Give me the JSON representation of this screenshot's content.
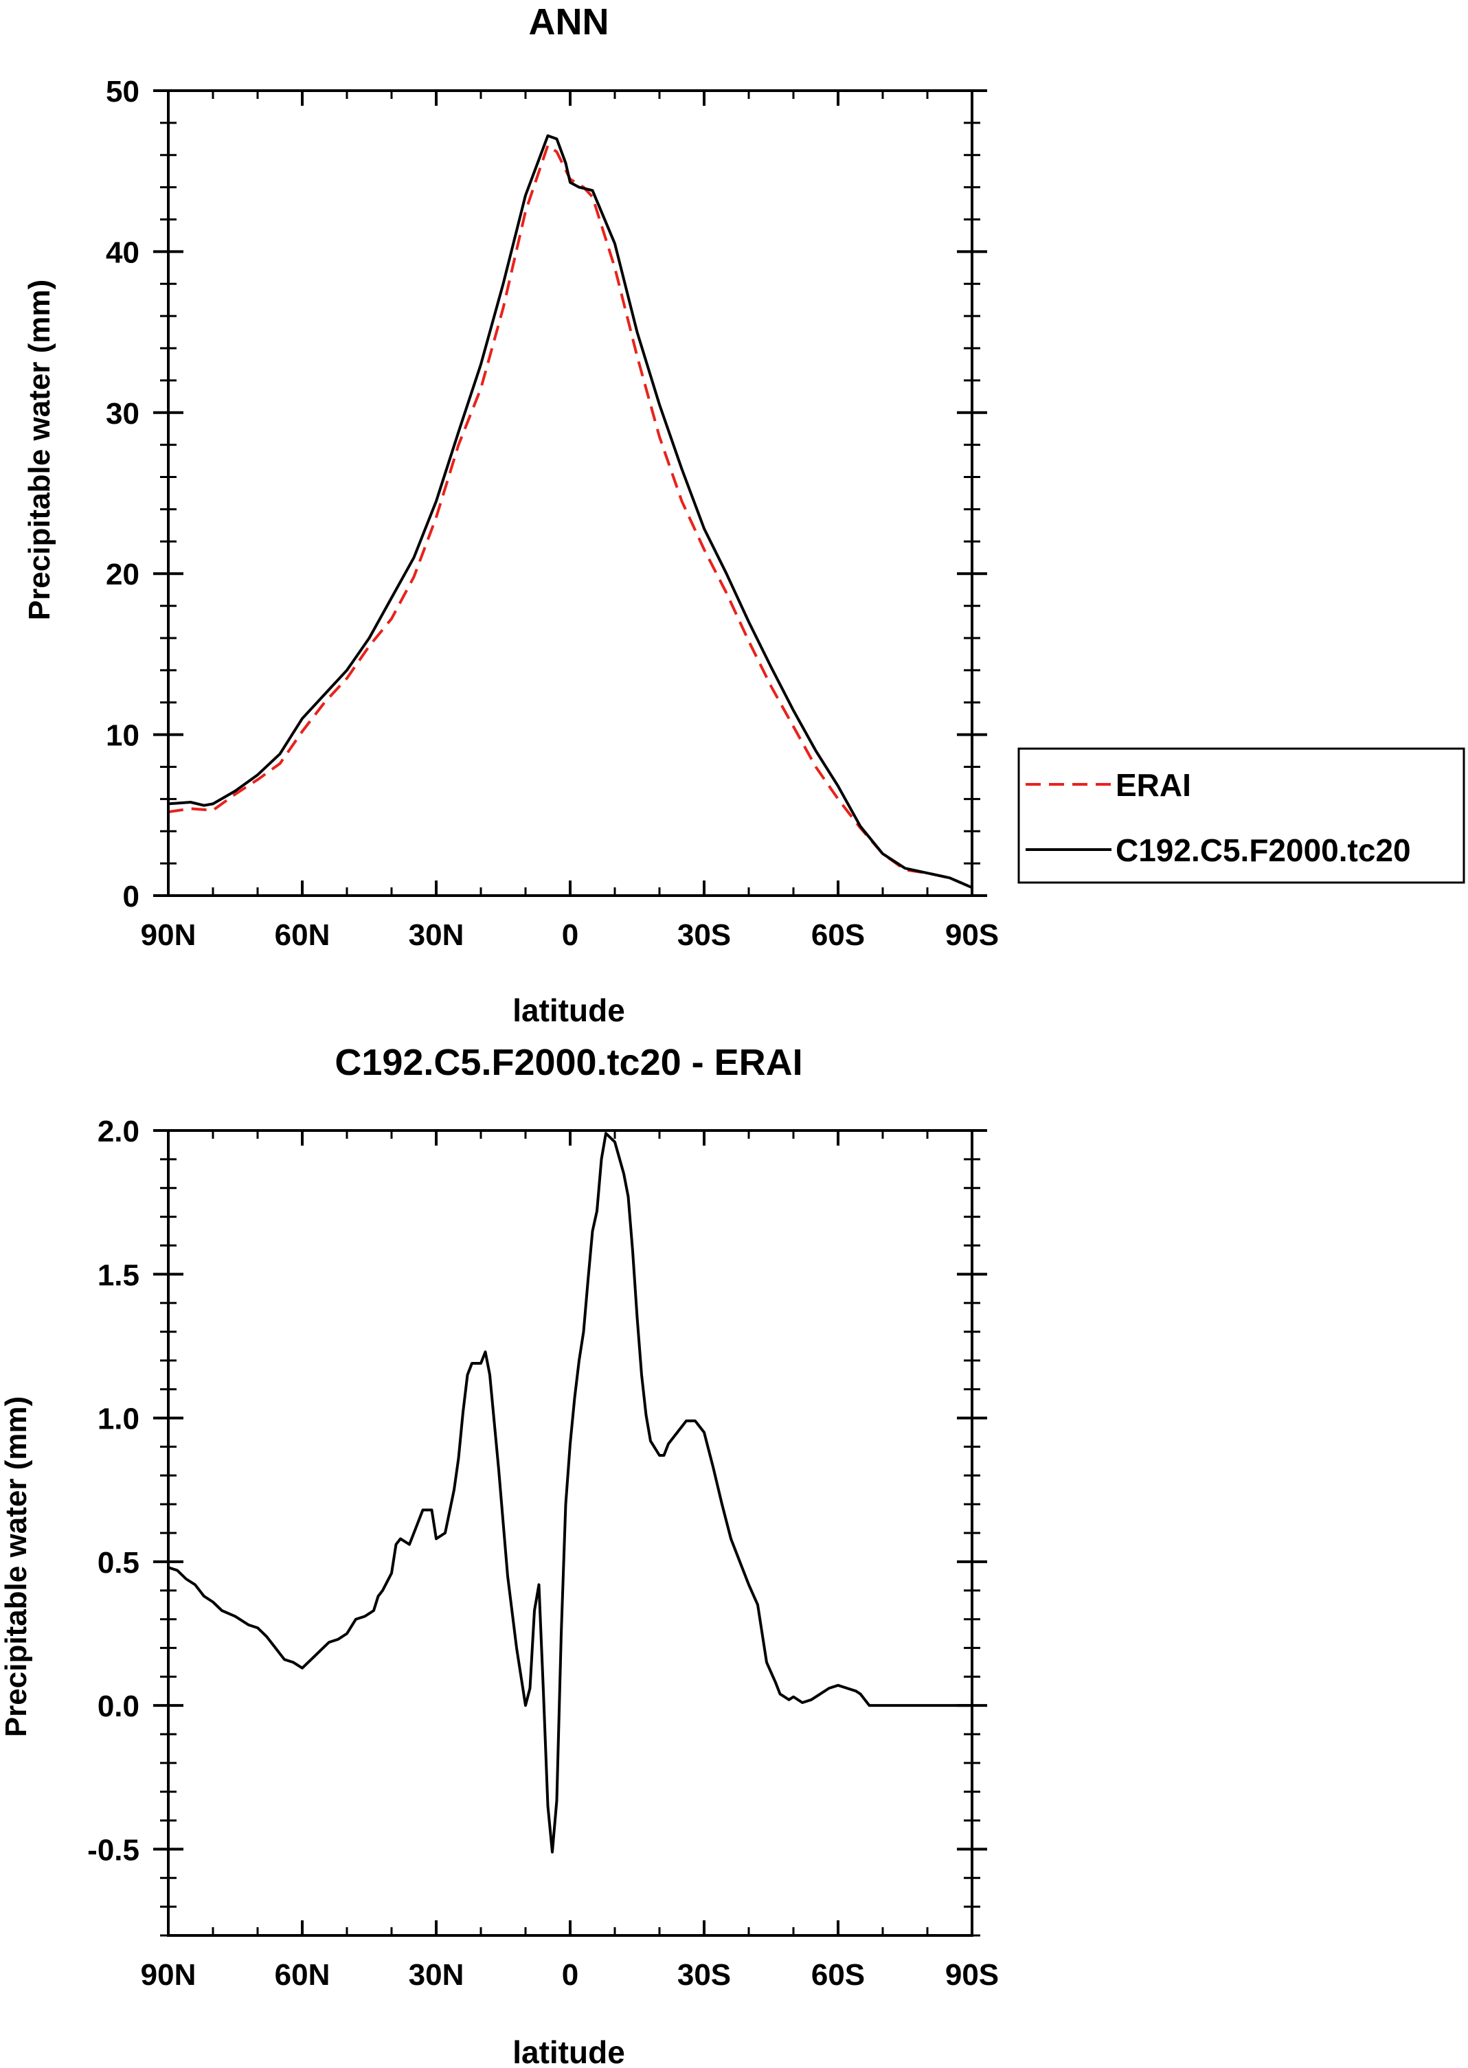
{
  "chart_data": [
    {
      "type": "line",
      "title": "ANN",
      "xlabel": "latitude",
      "ylabel": "Precipitable water (mm)",
      "xlim": [
        90,
        -90
      ],
      "ylim": [
        0,
        50
      ],
      "x_ticks": [
        90,
        60,
        30,
        0,
        -30,
        -60,
        -90
      ],
      "x_tick_labels": [
        "90N",
        "60N",
        "30N",
        "0",
        "30S",
        "60S",
        "90S"
      ],
      "y_ticks": [
        0,
        10,
        20,
        30,
        40,
        50
      ],
      "y_tick_labels": [
        "0",
        "10",
        "20",
        "30",
        "40",
        "50"
      ],
      "legend": {
        "position": "right",
        "entries": [
          "ERAI",
          "C192.C5.F2000.tc20"
        ]
      },
      "series": [
        {
          "name": "ERAI",
          "color": "#e8231c",
          "style": "dashed",
          "x": [
            90,
            85,
            80,
            75,
            70,
            65,
            60,
            55,
            50,
            45,
            40,
            35,
            30,
            25,
            20,
            15,
            10,
            5,
            3,
            0,
            -3,
            -5,
            -10,
            -15,
            -20,
            -25,
            -30,
            -35,
            -40,
            -45,
            -50,
            -55,
            -60,
            -65,
            -70,
            -75,
            -80,
            -85,
            -90
          ],
          "y": [
            5.2,
            5.4,
            5.3,
            6.3,
            7.2,
            8.2,
            10.2,
            12.0,
            13.5,
            15.5,
            17.2,
            19.8,
            23.5,
            28.0,
            31.5,
            36.5,
            42.5,
            46.6,
            46.2,
            44.5,
            44.0,
            43.4,
            39.0,
            33.5,
            28.5,
            24.5,
            21.5,
            18.8,
            15.8,
            13.0,
            10.5,
            8.0,
            6.0,
            4.2,
            2.6,
            1.6,
            1.4,
            1.1,
            0.5
          ]
        },
        {
          "name": "C192.C5.F2000.tc20",
          "color": "#000000",
          "style": "solid",
          "x": [
            90,
            85,
            82,
            80,
            75,
            70,
            65,
            60,
            55,
            50,
            45,
            40,
            35,
            30,
            25,
            20,
            15,
            10,
            5,
            3,
            1,
            0,
            -2,
            -5,
            -10,
            -15,
            -20,
            -25,
            -30,
            -35,
            -40,
            -45,
            -50,
            -55,
            -60,
            -65,
            -70,
            -75,
            -80,
            -85,
            -90
          ],
          "y": [
            5.7,
            5.8,
            5.6,
            5.7,
            6.5,
            7.5,
            8.8,
            11.0,
            12.5,
            14.0,
            16.0,
            18.5,
            21.0,
            24.5,
            28.8,
            33.0,
            38.0,
            43.5,
            47.2,
            47.0,
            45.5,
            44.3,
            44.0,
            43.8,
            40.5,
            35.0,
            30.5,
            26.5,
            22.8,
            20.0,
            17.0,
            14.2,
            11.5,
            9.0,
            6.8,
            4.3,
            2.6,
            1.7,
            1.4,
            1.1,
            0.5
          ]
        }
      ]
    },
    {
      "type": "line",
      "title": "C192.C5.F2000.tc20 - ERAI",
      "xlabel": "latitude",
      "ylabel": "Precipitable water (mm)",
      "xlim": [
        90,
        -90
      ],
      "ylim": [
        -0.8,
        2.0
      ],
      "x_ticks": [
        90,
        60,
        30,
        0,
        -30,
        -60,
        -90
      ],
      "x_tick_labels": [
        "90N",
        "60N",
        "30N",
        "0",
        "30S",
        "60S",
        "90S"
      ],
      "y_ticks": [
        -0.5,
        0.0,
        0.5,
        1.0,
        1.5,
        2.0
      ],
      "y_tick_labels": [
        "-0.5",
        "0.0",
        "0.5",
        "1.0",
        "1.5",
        "2.0"
      ],
      "series": [
        {
          "name": "C192.C5.F2000.tc20 - ERAI",
          "color": "#000000",
          "style": "solid",
          "x": [
            90,
            88,
            86,
            84,
            82,
            80,
            78,
            75,
            72,
            70,
            68,
            66,
            65,
            64,
            62,
            60,
            58,
            56,
            54,
            52,
            50,
            48,
            46,
            44,
            43,
            42,
            40,
            39,
            38,
            36,
            34,
            33,
            32,
            31,
            30,
            28,
            26,
            25,
            24,
            23,
            22,
            20,
            19,
            18,
            16,
            14,
            12,
            10,
            9,
            8,
            7,
            6,
            5,
            4,
            3,
            2,
            1,
            0,
            -1,
            -2,
            -3,
            -4,
            -5,
            -6,
            -7,
            -8,
            -10,
            -12,
            -13,
            -14,
            -15,
            -16,
            -17,
            -18,
            -20,
            -21,
            -22,
            -24,
            -26,
            -28,
            -30,
            -32,
            -34,
            -36,
            -38,
            -40,
            -42,
            -43,
            -44,
            -46,
            -47,
            -48,
            -49,
            -50,
            -52,
            -54,
            -56,
            -58,
            -60,
            -62,
            -64,
            -65,
            -66,
            -67,
            -68,
            -70,
            -72,
            -73,
            -74,
            -75,
            -76,
            -78,
            -80,
            -82,
            -83,
            -84,
            -86,
            -88,
            -90
          ],
          "y": [
            0.48,
            0.47,
            0.44,
            0.42,
            0.38,
            0.36,
            0.33,
            0.31,
            0.28,
            0.27,
            0.24,
            0.2,
            0.18,
            0.16,
            0.15,
            0.13,
            0.16,
            0.19,
            0.22,
            0.23,
            0.25,
            0.3,
            0.31,
            0.33,
            0.38,
            0.4,
            0.46,
            0.56,
            0.58,
            0.56,
            0.64,
            0.68,
            0.68,
            0.68,
            0.58,
            0.6,
            0.75,
            0.86,
            1.02,
            1.15,
            1.19,
            1.19,
            1.23,
            1.15,
            0.82,
            0.45,
            0.2,
            0.0,
            0.06,
            0.33,
            0.42,
            0.05,
            -0.35,
            -0.51,
            -0.33,
            0.25,
            0.7,
            0.91,
            1.07,
            1.2,
            1.3,
            1.48,
            1.65,
            1.72,
            1.9,
            1.99,
            1.96,
            1.85,
            1.77,
            1.58,
            1.35,
            1.15,
            1.01,
            0.92,
            0.87,
            0.87,
            0.91,
            0.95,
            0.99,
            0.99,
            0.95,
            0.83,
            0.7,
            0.58,
            0.5,
            0.42,
            0.35,
            0.25,
            0.15,
            0.08,
            0.04,
            0.03,
            0.02,
            0.03,
            0.01,
            0.02,
            0.04,
            0.06,
            0.07,
            0.06,
            0.05,
            0.04,
            0.02,
            0.0,
            0.0,
            0.0,
            0.0,
            0.0,
            0.0,
            0.0,
            0.0,
            0.0,
            0.0,
            0.0,
            0.0,
            0.0,
            0.0,
            0.0,
            0.0
          ]
        }
      ]
    }
  ]
}
